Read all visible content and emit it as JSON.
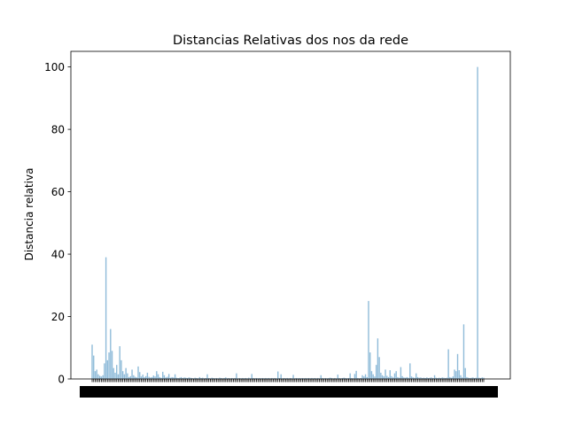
{
  "chart_data": {
    "type": "bar",
    "title": "Distancias Relativas dos nos da rede",
    "xlabel": "",
    "ylabel": "Distancia relativa",
    "ylim": [
      0,
      105
    ],
    "yticks": [
      0,
      20,
      40,
      60,
      80,
      100
    ],
    "grid": false,
    "legend": "none",
    "bar_color": "#1f77b4",
    "bar_alpha": 0.5,
    "n_bars": 256,
    "x_tick_labels_note": "dense overlapping category tick labels, unreadable",
    "values": [
      11,
      7.5,
      2.5,
      3,
      1.5,
      1,
      0.8,
      1.2,
      5,
      39,
      6,
      8.5,
      16,
      9,
      3.5,
      2,
      4.5,
      1.5,
      10.5,
      6,
      2.5,
      1.5,
      3.5,
      1.8,
      0.6,
      0.9,
      3,
      1.2,
      0.7,
      0.5,
      4,
      2.2,
      0.8,
      1.4,
      0.6,
      0.9,
      2,
      0.7,
      0.5,
      0.6,
      1.1,
      0.8,
      2.5,
      1.5,
      0.6,
      0.4,
      2.3,
      1.2,
      0.5,
      0.7,
      1.6,
      0.4,
      0.6,
      0.5,
      1.5,
      0.4,
      0.3,
      0.4,
      0.6,
      0.3,
      0.5,
      0.4,
      0.3,
      0.5,
      0.4,
      0.3,
      0.2,
      0.4,
      0.3,
      0.2,
      0.6,
      0.3,
      0.4,
      0.2,
      0.3,
      1.5,
      0.3,
      0.2,
      0.4,
      0.3,
      0.2,
      0.3,
      0.2,
      0.4,
      0.3,
      0.2,
      0.3,
      0.5,
      0.2,
      0.3,
      0.2,
      0.3,
      0.2,
      0.3,
      1.8,
      0.2,
      0.3,
      0.2,
      0.3,
      0.2,
      0.3,
      0.2,
      0.4,
      0.2,
      1.6,
      0.3,
      0.2,
      0.3,
      0.2,
      0.3,
      0.2,
      0.3,
      0.2,
      0.3,
      0.2,
      0.3,
      0.2,
      0.3,
      0.2,
      0.3,
      0.2,
      2.4,
      0.3,
      1.5,
      0.2,
      0.3,
      0.2,
      0.3,
      0.2,
      0.3,
      0.2,
      1.3,
      0.2,
      0.3,
      0.2,
      0.3,
      0.2,
      0.3,
      0.2,
      0.3,
      0.2,
      0.3,
      0.2,
      0.3,
      0.2,
      0.3,
      0.2,
      0.3,
      0.2,
      1.2,
      0.3,
      0.2,
      0.3,
      0.2,
      0.3,
      0.4,
      0.3,
      0.2,
      0.3,
      0.2,
      1.4,
      0.3,
      0.2,
      0.3,
      0.4,
      0.3,
      0.2,
      0.3,
      1.8,
      0.3,
      0.2,
      1.6,
      2.6,
      0.3,
      0.2,
      0.3,
      1.2,
      0.8,
      1.5,
      0.6,
      25,
      8.5,
      2.5,
      1.5,
      0.8,
      4.5,
      13,
      7,
      2,
      1.2,
      0.8,
      3,
      1,
      0.6,
      2.8,
      0.9,
      0.5,
      1.8,
      2.5,
      0.6,
      0.4,
      3.8,
      0.9,
      0.5,
      0.4,
      0.6,
      0.4,
      5,
      0.8,
      0.5,
      0.4,
      1.8,
      0.6,
      0.4,
      0.5,
      0.3,
      0.4,
      0.3,
      0.5,
      0.3,
      0.4,
      0.5,
      0.3,
      1.2,
      0.4,
      0.3,
      0.4,
      0.3,
      0.5,
      0.4,
      0.3,
      0.4,
      9.5,
      0.6,
      0.4,
      0.8,
      3,
      2.5,
      8,
      2.8,
      1.2,
      0.5,
      17.5,
      3.5,
      0.6,
      0.4,
      0.3,
      0.4,
      0.5,
      0.3,
      0.4,
      100,
      0.4,
      0.3,
      0.5,
      0.4
    ]
  }
}
